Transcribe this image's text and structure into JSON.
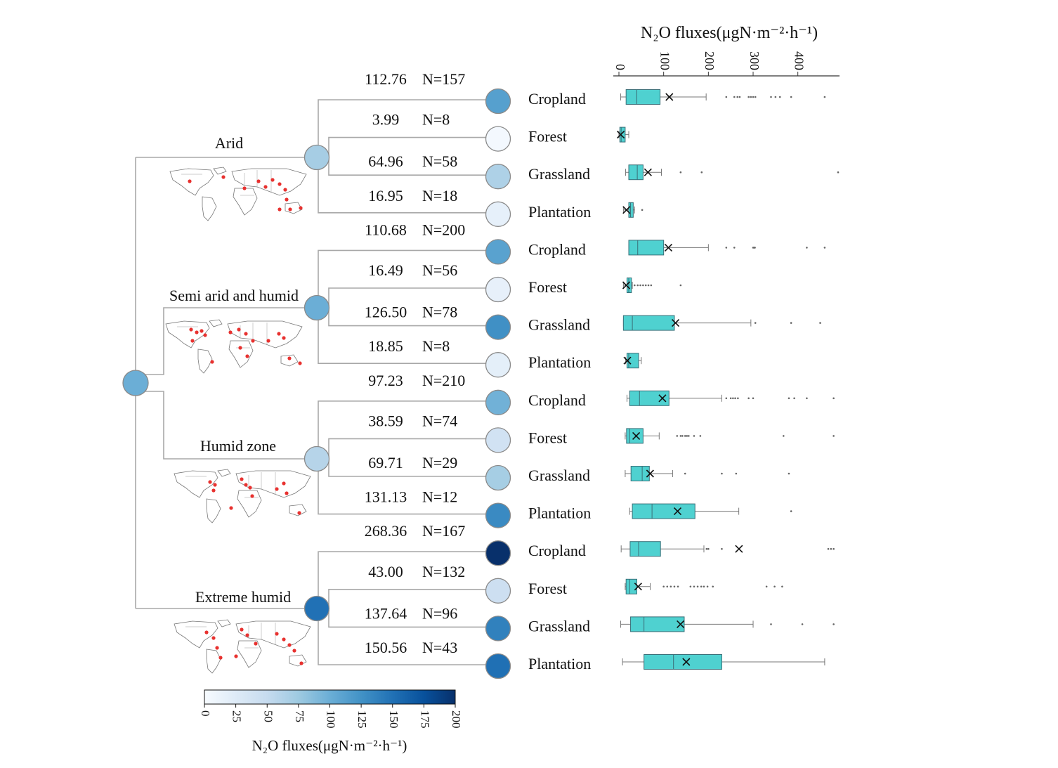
{
  "chart_data": {
    "type": "tree-boxplot",
    "axis_title": "N₂O fluxes(μgN·m⁻²·h⁻¹)",
    "axis_ticks": [
      "0",
      "100",
      "200",
      "300",
      "400"
    ],
    "xlim": [
      0,
      490
    ],
    "colorbar": {
      "title": "N₂O fluxes(μgN·m⁻²·h⁻¹)",
      "ticks": [
        "0",
        "25",
        "50",
        "75",
        "100",
        "125",
        "150",
        "175",
        "200"
      ],
      "range": [
        0,
        200
      ],
      "colors": [
        "#f7fbff",
        "#deebf7",
        "#c6dbef",
        "#9ecae1",
        "#6baed6",
        "#4292c6",
        "#2171b5",
        "#08519c",
        "#08306b"
      ]
    },
    "root_value": 100,
    "groups": [
      {
        "name": "Arid",
        "value": 70,
        "items": [
          {
            "mean": "112.76",
            "n": "N=157",
            "land": "Cropland",
            "fill": 112.76,
            "box": {
              "wlo": 4,
              "q1": 16,
              "med": 40,
              "q3": 92,
              "whi": 195,
              "mean": 112.76,
              "out": [
                240,
                258,
                265,
                270,
                290,
                295,
                300,
                305,
                340,
                350,
                360,
                385,
                460
              ]
            }
          },
          {
            "mean": "3.99",
            "n": "N=8",
            "land": "Forest",
            "fill": 3.99,
            "box": {
              "wlo": 0,
              "q1": 2,
              "med": 5,
              "q3": 14,
              "whi": 22,
              "mean": 3.99,
              "out": []
            }
          },
          {
            "mean": "64.96",
            "n": "N=58",
            "land": "Grassland",
            "fill": 64.96,
            "box": {
              "wlo": 15,
              "q1": 22,
              "med": 41,
              "q3": 54,
              "whi": 95,
              "mean": 64.96,
              "out": [
                138,
                185,
                490
              ]
            }
          },
          {
            "mean": "16.95",
            "n": "N=18",
            "land": "Plantation",
            "fill": 16.95,
            "box": {
              "wlo": 10,
              "q1": 22,
              "med": 26,
              "q3": 32,
              "whi": 35,
              "mean": 16.95,
              "out": [
                52
              ]
            }
          }
        ]
      },
      {
        "name": "Semi arid and humid",
        "value": 100,
        "items": [
          {
            "mean": "110.68",
            "n": "N=200",
            "land": "Cropland",
            "fill": 110.68,
            "box": {
              "wlo": 22,
              "q1": 22,
              "med": 42,
              "q3": 100,
              "whi": 200,
              "mean": 110.68,
              "out": [
                240,
                258,
                300,
                302,
                304,
                420,
                460
              ]
            }
          },
          {
            "mean": "16.49",
            "n": "N=56",
            "land": "Forest",
            "fill": 16.49,
            "box": {
              "wlo": 10,
              "q1": 18,
              "med": 22,
              "q3": 28,
              "whi": 30,
              "mean": 16.49,
              "out": [
                35,
                42,
                48,
                54,
                60,
                66,
                72,
                138
              ]
            }
          },
          {
            "mean": "126.50",
            "n": "N=78",
            "land": "Grassland",
            "fill": 126.5,
            "box": {
              "wlo": 10,
              "q1": 10,
              "med": 30,
              "q3": 124,
              "whi": 295,
              "mean": 126.5,
              "out": [
                305,
                385,
                450
              ]
            }
          },
          {
            "mean": "18.85",
            "n": "N=8",
            "land": "Plantation",
            "fill": 18.85,
            "box": {
              "wlo": 15,
              "q1": 18,
              "med": 22,
              "q3": 44,
              "whi": 50,
              "mean": 18.85,
              "out": []
            }
          }
        ]
      },
      {
        "name": "Humid zone",
        "value": 60,
        "items": [
          {
            "mean": "97.23",
            "n": "N=210",
            "land": "Cropland",
            "fill": 97.23,
            "box": {
              "wlo": 18,
              "q1": 24,
              "med": 46,
              "q3": 112,
              "whi": 230,
              "mean": 97.23,
              "out": [
                240,
                250,
                255,
                260,
                266,
                290,
                300,
                380,
                392,
                420,
                480
              ]
            }
          },
          {
            "mean": "38.59",
            "n": "N=74",
            "land": "Forest",
            "fill": 38.59,
            "box": {
              "wlo": 14,
              "q1": 17,
              "med": 24,
              "q3": 54,
              "whi": 90,
              "mean": 38.59,
              "out": [
                130,
                138,
                142,
                148,
                152,
                156,
                168,
                182,
                368,
                480
              ]
            }
          },
          {
            "mean": "69.71",
            "n": "N=29",
            "land": "Grassland",
            "fill": 69.71,
            "box": {
              "wlo": 14,
              "q1": 27,
              "med": 52,
              "q3": 68,
              "whi": 120,
              "mean": 69.71,
              "out": [
                148,
                230,
                262,
                380
              ]
            }
          },
          {
            "mean": "131.13",
            "n": "N=12",
            "land": "Plantation",
            "fill": 131.13,
            "box": {
              "wlo": 24,
              "q1": 30,
              "med": 74,
              "q3": 170,
              "whi": 268,
              "mean": 131.13,
              "out": [
                385
              ]
            }
          }
        ]
      },
      {
        "name": "Extreme humid",
        "value": 150,
        "items": [
          {
            "mean": "268.36",
            "n": "N=167",
            "land": "Cropland",
            "fill": 268.36,
            "box": {
              "wlo": 5,
              "q1": 25,
              "med": 44,
              "q3": 93,
              "whi": 190,
              "mean": 268.36,
              "out": [
                196,
                200,
                230,
                468,
                474,
                480
              ]
            }
          },
          {
            "mean": "43.00",
            "n": "N=132",
            "land": "Forest",
            "fill": 43.0,
            "box": {
              "wlo": 14,
              "q1": 16,
              "med": 24,
              "q3": 40,
              "whi": 70,
              "mean": 43.0,
              "out": [
                100,
                108,
                116,
                124,
                132,
                160,
                168,
                176,
                184,
                190,
                198,
                210,
                330,
                348,
                365
              ]
            }
          },
          {
            "mean": "137.64",
            "n": "N=96",
            "land": "Grassland",
            "fill": 137.64,
            "box": {
              "wlo": 4,
              "q1": 26,
              "med": 56,
              "q3": 146,
              "whi": 300,
              "mean": 137.64,
              "out": [
                340,
                410,
                480
              ]
            }
          },
          {
            "mean": "150.56",
            "n": "N=43",
            "land": "Plantation",
            "fill": 150.56,
            "box": {
              "wlo": 8,
              "q1": 56,
              "med": 122,
              "q3": 230,
              "whi": 460,
              "mean": 150.56,
              "out": []
            }
          }
        ]
      }
    ]
  }
}
